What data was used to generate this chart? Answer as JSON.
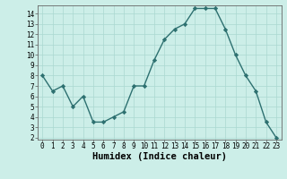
{
  "x": [
    0,
    1,
    2,
    3,
    4,
    5,
    6,
    7,
    8,
    9,
    10,
    11,
    12,
    13,
    14,
    15,
    16,
    17,
    18,
    19,
    20,
    21,
    22,
    23
  ],
  "y": [
    8,
    6.5,
    7,
    5,
    6,
    3.5,
    3.5,
    4,
    4.5,
    7,
    7,
    9.5,
    11.5,
    12.5,
    13,
    14.5,
    14.5,
    14.5,
    12.5,
    10,
    8,
    6.5,
    3.5,
    2
  ],
  "line_color": "#2d7070",
  "marker": "D",
  "marker_size": 2.2,
  "bg_color": "#cceee8",
  "grid_color": "#aad8d0",
  "xlabel": "Humidex (Indice chaleur)",
  "xlim": [
    -0.5,
    23.5
  ],
  "ylim": [
    1.8,
    14.8
  ],
  "yticks": [
    2,
    3,
    4,
    5,
    6,
    7,
    8,
    9,
    10,
    11,
    12,
    13,
    14
  ],
  "xticks": [
    0,
    1,
    2,
    3,
    4,
    5,
    6,
    7,
    8,
    9,
    10,
    11,
    12,
    13,
    14,
    15,
    16,
    17,
    18,
    19,
    20,
    21,
    22,
    23
  ],
  "tick_label_fontsize": 5.5,
  "xlabel_fontsize": 7.5,
  "line_width": 1.0
}
